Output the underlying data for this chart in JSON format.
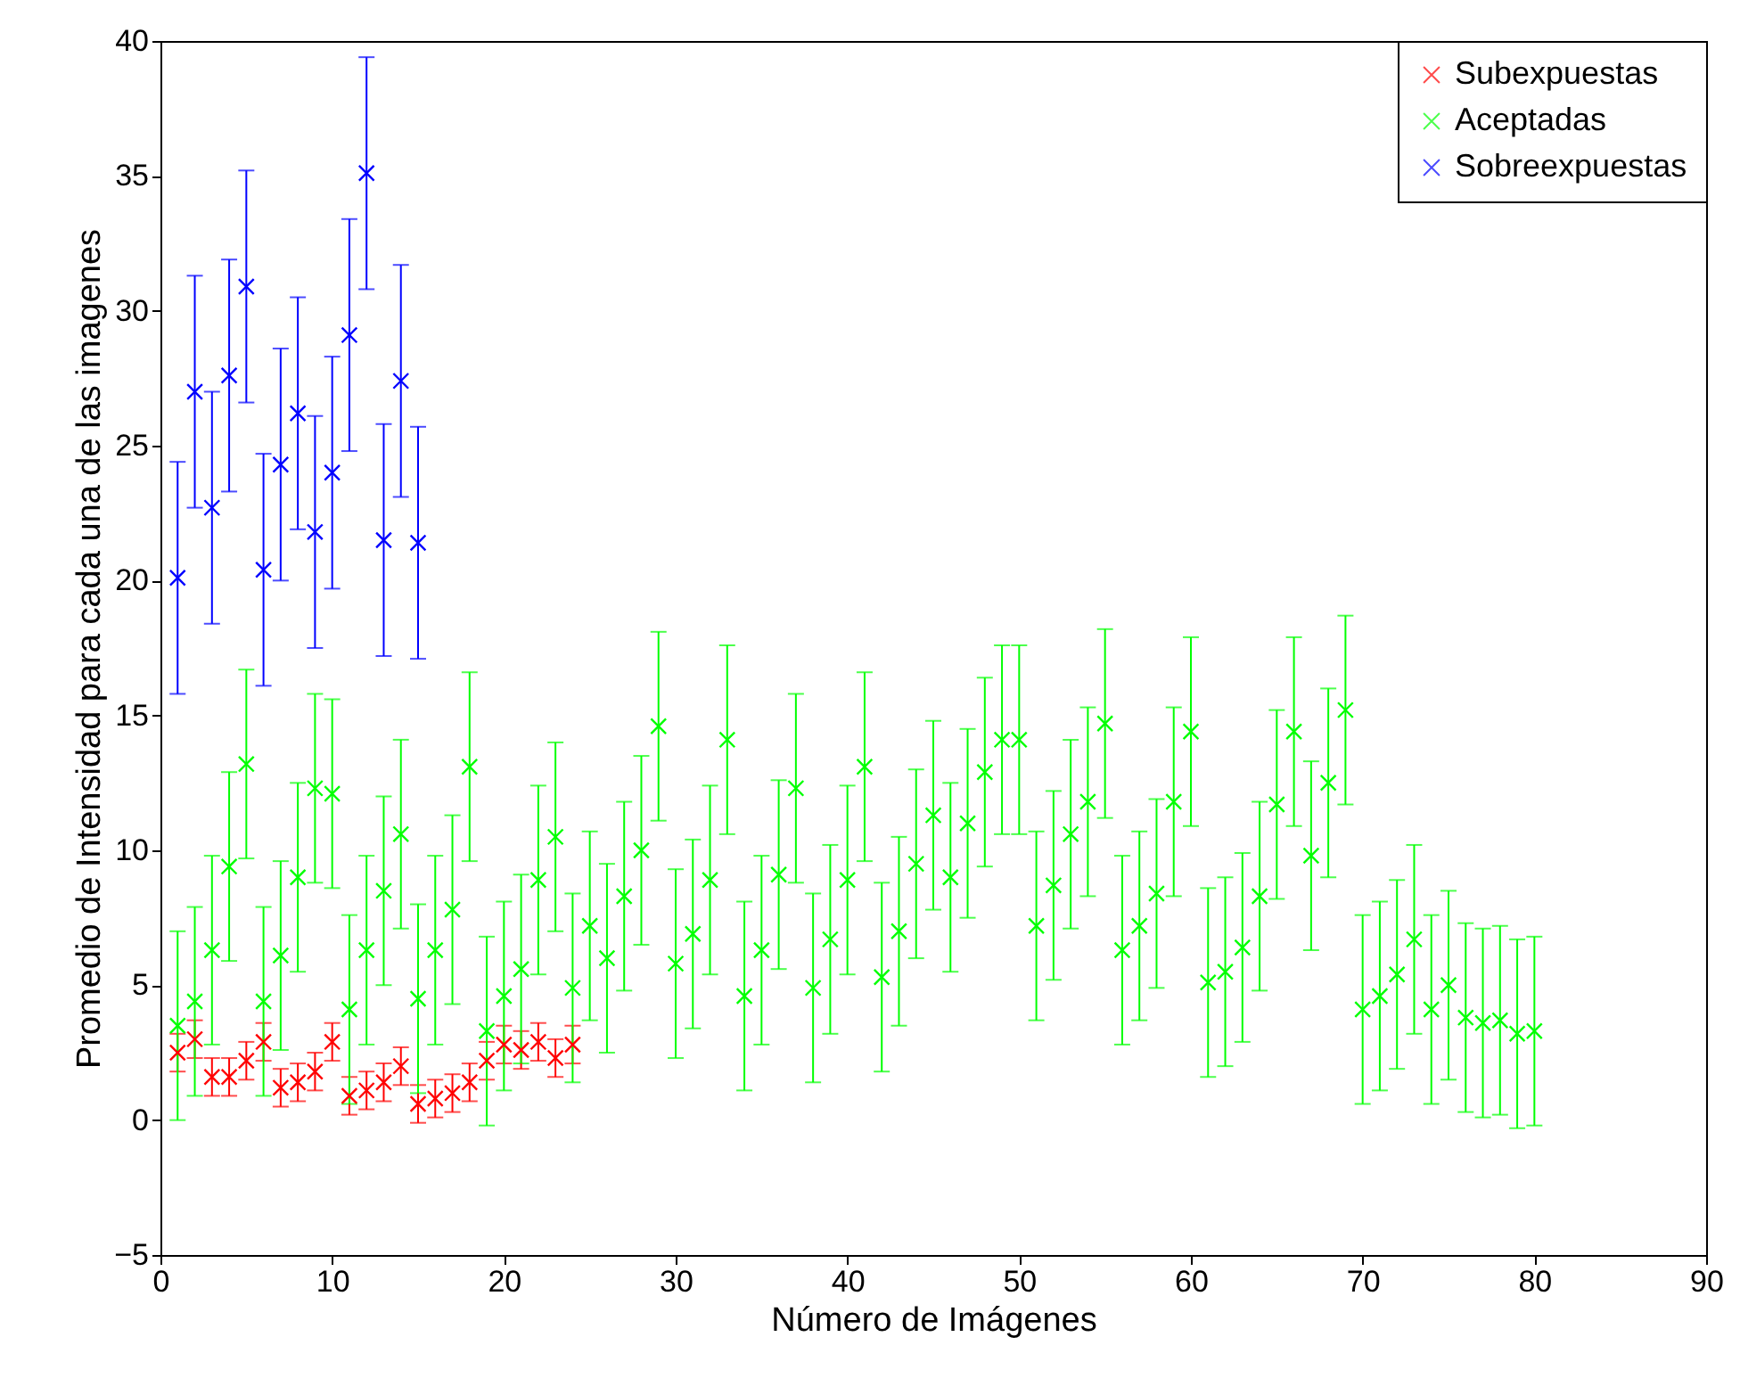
{
  "chart_data": {
    "type": "scatter",
    "xlabel": "Número de Imágenes",
    "ylabel": "Promedio de Intensidad para cada una de las imagenes",
    "xlim": [
      0,
      90
    ],
    "xticks": [
      0,
      10,
      20,
      30,
      40,
      50,
      60,
      70,
      80,
      90
    ],
    "ylim": [
      -5,
      40
    ],
    "yticks": [
      -5,
      0,
      5,
      10,
      15,
      20,
      25,
      30,
      35,
      40
    ],
    "legend": "top right",
    "marker": "cross",
    "series": [
      {
        "name": "Subexpuestas",
        "color": "#ff0000",
        "x": [
          1,
          2,
          3,
          4,
          5,
          6,
          7,
          8,
          9,
          10,
          11,
          12,
          13,
          14,
          15,
          16,
          17,
          18,
          19,
          20,
          21,
          22,
          23,
          24
        ],
        "values": [
          2.5,
          3.0,
          1.6,
          1.6,
          2.2,
          2.9,
          1.2,
          1.4,
          1.8,
          2.9,
          0.9,
          1.1,
          1.4,
          2.0,
          0.6,
          0.8,
          1.0,
          1.4,
          2.2,
          2.8,
          2.6,
          2.9,
          2.3,
          2.8
        ],
        "errors": [
          0.7,
          0.7,
          0.7,
          0.7,
          0.7,
          0.7,
          0.7,
          0.7,
          0.7,
          0.7,
          0.7,
          0.7,
          0.7,
          0.7,
          0.7,
          0.7,
          0.7,
          0.7,
          0.7,
          0.7,
          0.7,
          0.7,
          0.7,
          0.7
        ]
      },
      {
        "name": "Aceptadas",
        "color": "#00ff00",
        "x": [
          1,
          2,
          3,
          4,
          5,
          6,
          7,
          8,
          9,
          10,
          11,
          12,
          13,
          14,
          15,
          16,
          17,
          18,
          19,
          20,
          21,
          22,
          23,
          24,
          25,
          26,
          27,
          28,
          29,
          30,
          31,
          32,
          33,
          34,
          35,
          36,
          37,
          38,
          39,
          40,
          41,
          42,
          43,
          44,
          45,
          46,
          47,
          48,
          49,
          50,
          51,
          52,
          53,
          54,
          55,
          56,
          57,
          58,
          59,
          60,
          61,
          62,
          63,
          64,
          65,
          66,
          67,
          68,
          69,
          70,
          71,
          72,
          73,
          74,
          75,
          76,
          77,
          78,
          79,
          80
        ],
        "values": [
          3.5,
          4.4,
          6.3,
          9.4,
          13.2,
          4.4,
          6.1,
          9.0,
          12.3,
          12.1,
          4.1,
          6.3,
          8.5,
          10.6,
          4.5,
          6.3,
          7.8,
          13.1,
          3.3,
          4.6,
          5.6,
          8.9,
          10.5,
          4.9,
          7.2,
          6.0,
          8.3,
          10.0,
          14.6,
          5.8,
          6.9,
          8.9,
          14.1,
          4.6,
          6.3,
          9.1,
          12.3,
          4.9,
          6.7,
          8.9,
          13.1,
          5.3,
          7.0,
          9.5,
          11.3,
          9.0,
          11.0,
          12.9,
          14.1,
          14.1,
          7.2,
          8.7,
          10.6,
          11.8,
          14.7,
          6.3,
          7.2,
          8.4,
          11.8,
          14.4,
          5.1,
          5.5,
          6.4,
          8.3,
          11.7,
          14.4,
          9.8,
          12.5,
          15.2,
          4.1,
          4.6,
          5.4,
          6.7,
          4.1,
          5.0,
          3.8,
          3.6,
          3.7,
          3.2,
          3.3
        ],
        "errors": [
          3.5,
          3.5,
          3.5,
          3.5,
          3.5,
          3.5,
          3.5,
          3.5,
          3.5,
          3.5,
          3.5,
          3.5,
          3.5,
          3.5,
          3.5,
          3.5,
          3.5,
          3.5,
          3.5,
          3.5,
          3.5,
          3.5,
          3.5,
          3.5,
          3.5,
          3.5,
          3.5,
          3.5,
          3.5,
          3.5,
          3.5,
          3.5,
          3.5,
          3.5,
          3.5,
          3.5,
          3.5,
          3.5,
          3.5,
          3.5,
          3.5,
          3.5,
          3.5,
          3.5,
          3.5,
          3.5,
          3.5,
          3.5,
          3.5,
          3.5,
          3.5,
          3.5,
          3.5,
          3.5,
          3.5,
          3.5,
          3.5,
          3.5,
          3.5,
          3.5,
          3.5,
          3.5,
          3.5,
          3.5,
          3.5,
          3.5,
          3.5,
          3.5,
          3.5,
          3.5,
          3.5,
          3.5,
          3.5,
          3.5,
          3.5,
          3.5,
          3.5,
          3.5,
          3.5,
          3.5
        ]
      },
      {
        "name": "Sobreexpuestas",
        "color": "#0000ff",
        "x": [
          1,
          2,
          3,
          4,
          5,
          6,
          7,
          8,
          9,
          10,
          11,
          12,
          13,
          14,
          15
        ],
        "values": [
          20.1,
          27.0,
          22.7,
          27.6,
          30.9,
          20.4,
          24.3,
          26.2,
          21.8,
          24.0,
          29.1,
          35.1,
          21.5,
          27.4,
          21.4
        ],
        "errors": [
          4.3,
          4.3,
          4.3,
          4.3,
          4.3,
          4.3,
          4.3,
          4.3,
          4.3,
          4.3,
          4.3,
          4.3,
          4.3,
          4.3,
          4.3
        ]
      }
    ]
  }
}
